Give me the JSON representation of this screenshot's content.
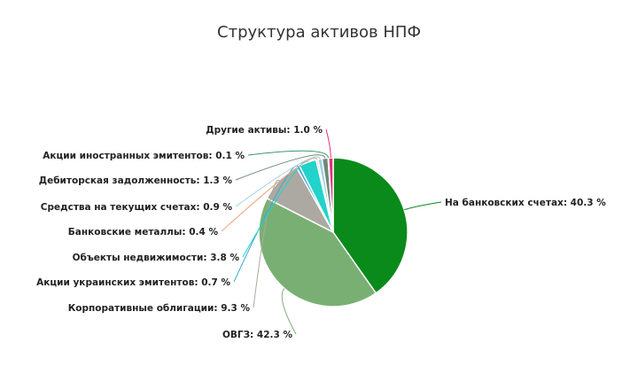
{
  "chart_data": {
    "type": "pie",
    "title": "Структура активов НПФ",
    "slices": [
      {
        "label": "На банковских счетах",
        "value": 40.3,
        "value_text": "40.3 %",
        "color": "#0a8a1a"
      },
      {
        "label": "ОВГЗ",
        "value": 42.3,
        "value_text": "42.3 %",
        "color": "#7aaf74"
      },
      {
        "label": "Корпоративные облигации",
        "value": 9.3,
        "value_text": "9.3 %",
        "color": "#aba9a1"
      },
      {
        "label": "Акции украинских эмитентов",
        "value": 0.7,
        "value_text": "0.7 %",
        "color": "#3aa9d4"
      },
      {
        "label": "Объекты недвижимости",
        "value": 3.8,
        "value_text": "3.8 %",
        "color": "#22d3cb"
      },
      {
        "label": "Банковские металлы",
        "value": 0.4,
        "value_text": "0.4 %",
        "color": "#f0a37e"
      },
      {
        "label": "Средства на текущих счетах",
        "value": 0.9,
        "value_text": "0.9 %",
        "color": "#9ecfe6"
      },
      {
        "label": "Дебиторская задолженность",
        "value": 1.3,
        "value_text": "1.3 %",
        "color": "#6e8a7a"
      },
      {
        "label": "Акции иностранных эмитентов",
        "value": 0.1,
        "value_text": "0.1 %",
        "color": "#3a9a6a"
      },
      {
        "label": "Другие активы",
        "value": 1.0,
        "value_text": "1.0 %",
        "color": "#e0307a"
      }
    ]
  }
}
